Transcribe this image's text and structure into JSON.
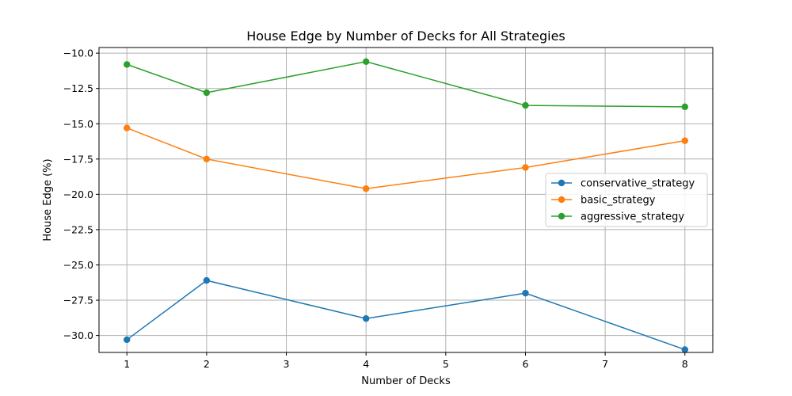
{
  "chart_data": {
    "type": "line",
    "title": "House Edge by Number of Decks for All Strategies",
    "xlabel": "Number of Decks",
    "ylabel": "House Edge (%)",
    "x": [
      1,
      2,
      4,
      6,
      8
    ],
    "xticks": [
      1,
      2,
      3,
      4,
      5,
      6,
      7,
      8
    ],
    "xtick_labels": [
      "1",
      "2",
      "3",
      "4",
      "5",
      "6",
      "7",
      "8"
    ],
    "yticks": [
      -10.0,
      -12.5,
      -15.0,
      -17.5,
      -20.0,
      -22.5,
      -25.0,
      -27.5,
      -30.0
    ],
    "ytick_labels": [
      "−10.0",
      "−12.5",
      "−15.0",
      "−17.5",
      "−20.0",
      "−22.5",
      "−25.0",
      "−27.5",
      "−30.0"
    ],
    "xlim": [
      0.65,
      8.35
    ],
    "ylim": [
      -31.2,
      -9.6
    ],
    "grid": true,
    "legend_position": "center-right",
    "series": [
      {
        "name": "conservative_strategy",
        "color": "#1f77b4",
        "values": [
          -30.3,
          -26.1,
          -28.8,
          -27.0,
          -31.0
        ]
      },
      {
        "name": "basic_strategy",
        "color": "#ff7f0e",
        "values": [
          -15.3,
          -17.5,
          -19.6,
          -18.1,
          -16.2
        ]
      },
      {
        "name": "aggressive_strategy",
        "color": "#2ca02c",
        "values": [
          -10.8,
          -12.8,
          -10.6,
          -13.7,
          -13.8
        ]
      }
    ]
  }
}
